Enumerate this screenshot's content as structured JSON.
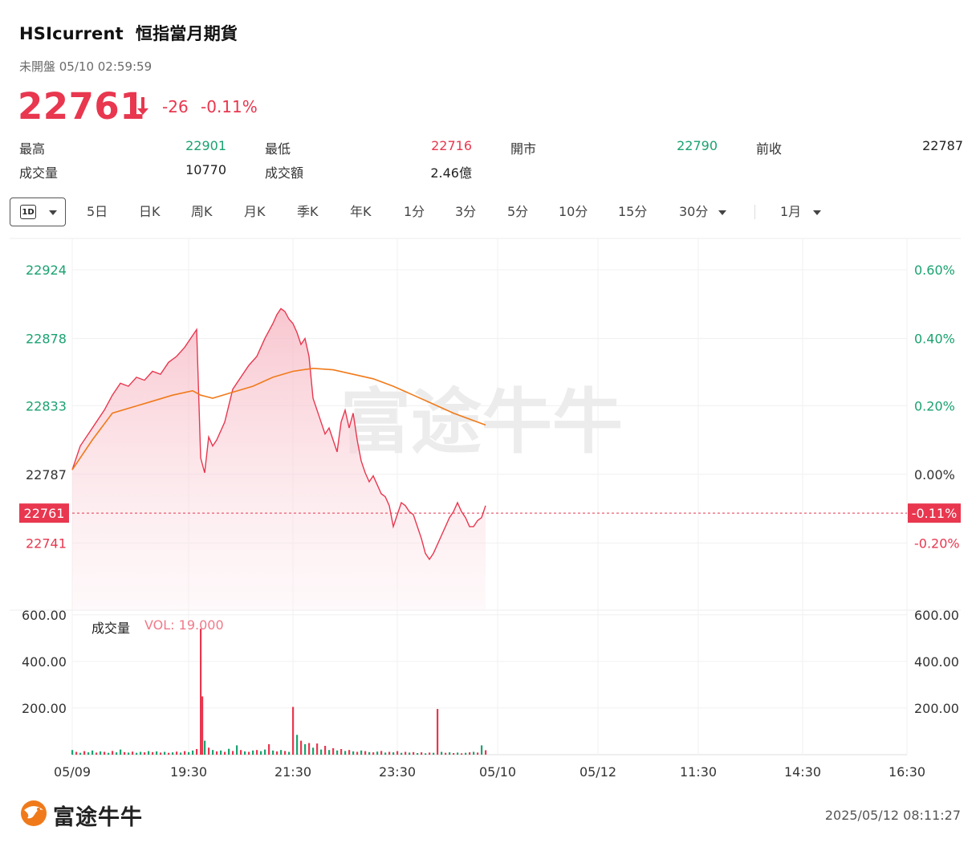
{
  "header": {
    "symbol": "HSIcurrent",
    "name": "恒指當月期貨",
    "status": "未開盤 05/10 02:59:59",
    "price": "22761",
    "change": "-26",
    "change_pct": "-0.11%"
  },
  "stats": [
    {
      "label": "最高",
      "value": "22901",
      "color": "green"
    },
    {
      "label": "最低",
      "value": "22716",
      "color": "red"
    },
    {
      "label": "開市",
      "value": "22790",
      "color": "green"
    },
    {
      "label": "前收",
      "value": "22787",
      "color": "dark"
    },
    {
      "label": "成交量",
      "value": "10770",
      "color": "dark"
    },
    {
      "label": "成交額",
      "value": "2.46億",
      "color": "dark"
    }
  ],
  "tabs": {
    "active": "1D",
    "items": [
      "5日",
      "日K",
      "周K",
      "月K",
      "季K",
      "年K",
      "1分",
      "3分",
      "5分",
      "10分",
      "15分",
      "30分"
    ],
    "range": "1月"
  },
  "colors": {
    "up": "#1aa270",
    "down": "#e8374f",
    "avg_line": "#f07a1a",
    "watermark": "#e9e9e9"
  },
  "chart_data": {
    "type": "line",
    "x_ticks": [
      "05/09",
      "19:30",
      "21:30",
      "23:30",
      "05/10",
      "05/12",
      "11:30",
      "14:30",
      "16:30"
    ],
    "y_ticks": [
      "22924",
      "22878",
      "22833",
      "22787",
      "22741"
    ],
    "y_ticks_pct": [
      "0.60%",
      "0.40%",
      "0.20%",
      "0.00%",
      "-0.20%"
    ],
    "ylim": [
      22696,
      22945
    ],
    "prev_close": 22787,
    "last_price": "22761",
    "last_pct": "-0.11%",
    "price_series": [
      [
        0,
        22790
      ],
      [
        2,
        22806
      ],
      [
        4,
        22814
      ],
      [
        6,
        22822
      ],
      [
        8,
        22830
      ],
      [
        10,
        22840
      ],
      [
        12,
        22848
      ],
      [
        14,
        22846
      ],
      [
        16,
        22852
      ],
      [
        18,
        22850
      ],
      [
        20,
        22856
      ],
      [
        22,
        22854
      ],
      [
        24,
        22862
      ],
      [
        26,
        22866
      ],
      [
        28,
        22872
      ],
      [
        30,
        22880
      ],
      [
        31,
        22884
      ],
      [
        32,
        22798
      ],
      [
        33,
        22788
      ],
      [
        34,
        22812
      ],
      [
        35,
        22806
      ],
      [
        36,
        22810
      ],
      [
        38,
        22822
      ],
      [
        40,
        22844
      ],
      [
        42,
        22852
      ],
      [
        44,
        22860
      ],
      [
        46,
        22866
      ],
      [
        48,
        22878
      ],
      [
        50,
        22888
      ],
      [
        51,
        22894
      ],
      [
        52,
        22898
      ],
      [
        53,
        22896
      ],
      [
        54,
        22891
      ],
      [
        55,
        22888
      ],
      [
        56,
        22882
      ],
      [
        57,
        22874
      ],
      [
        58,
        22878
      ],
      [
        59,
        22866
      ],
      [
        60,
        22838
      ],
      [
        61,
        22830
      ],
      [
        62,
        22822
      ],
      [
        63,
        22814
      ],
      [
        64,
        22818
      ],
      [
        65,
        22810
      ],
      [
        66,
        22802
      ],
      [
        67,
        22822
      ],
      [
        68,
        22830
      ],
      [
        69,
        22818
      ],
      [
        70,
        22828
      ],
      [
        71,
        22810
      ],
      [
        72,
        22796
      ],
      [
        73,
        22788
      ],
      [
        74,
        22782
      ],
      [
        75,
        22786
      ],
      [
        76,
        22780
      ],
      [
        77,
        22774
      ],
      [
        78,
        22772
      ],
      [
        79,
        22766
      ],
      [
        80,
        22752
      ],
      [
        81,
        22760
      ],
      [
        82,
        22768
      ],
      [
        83,
        22766
      ],
      [
        84,
        22762
      ],
      [
        85,
        22760
      ],
      [
        86,
        22752
      ],
      [
        87,
        22744
      ],
      [
        88,
        22734
      ],
      [
        89,
        22730
      ],
      [
        90,
        22734
      ],
      [
        91,
        22740
      ],
      [
        92,
        22746
      ],
      [
        93,
        22752
      ],
      [
        94,
        22758
      ],
      [
        95,
        22762
      ],
      [
        96,
        22768
      ],
      [
        97,
        22762
      ],
      [
        98,
        22758
      ],
      [
        99,
        22752
      ],
      [
        100,
        22752
      ],
      [
        101,
        22756
      ],
      [
        102,
        22758
      ],
      [
        103,
        22766
      ]
    ],
    "avg_series": [
      [
        0,
        22790
      ],
      [
        5,
        22810
      ],
      [
        10,
        22828
      ],
      [
        15,
        22832
      ],
      [
        20,
        22836
      ],
      [
        25,
        22840
      ],
      [
        30,
        22843
      ],
      [
        32,
        22840
      ],
      [
        35,
        22838
      ],
      [
        40,
        22842
      ],
      [
        45,
        22846
      ],
      [
        50,
        22852
      ],
      [
        55,
        22856
      ],
      [
        60,
        22858
      ],
      [
        65,
        22857
      ],
      [
        70,
        22854
      ],
      [
        75,
        22851
      ],
      [
        80,
        22846
      ],
      [
        85,
        22840
      ],
      [
        90,
        22834
      ],
      [
        95,
        22828
      ],
      [
        100,
        22823
      ],
      [
        103,
        22820
      ]
    ],
    "volume": {
      "label": "成交量",
      "value_label": "VOL: 19.000",
      "y_ticks": [
        "600.00",
        "400.00",
        "200.00"
      ],
      "ylim": [
        0,
        620
      ],
      "bars": [
        [
          0,
          20,
          "up"
        ],
        [
          1,
          12,
          "down"
        ],
        [
          2,
          8,
          "up"
        ],
        [
          3,
          15,
          "down"
        ],
        [
          4,
          10,
          "up"
        ],
        [
          5,
          18,
          "up"
        ],
        [
          6,
          9,
          "down"
        ],
        [
          7,
          14,
          "up"
        ],
        [
          8,
          12,
          "down"
        ],
        [
          9,
          8,
          "up"
        ],
        [
          10,
          16,
          "down"
        ],
        [
          11,
          10,
          "up"
        ],
        [
          12,
          22,
          "up"
        ],
        [
          13,
          11,
          "down"
        ],
        [
          14,
          9,
          "up"
        ],
        [
          15,
          13,
          "down"
        ],
        [
          16,
          8,
          "up"
        ],
        [
          17,
          12,
          "up"
        ],
        [
          18,
          10,
          "down"
        ],
        [
          19,
          15,
          "up"
        ],
        [
          20,
          11,
          "down"
        ],
        [
          21,
          14,
          "up"
        ],
        [
          22,
          9,
          "down"
        ],
        [
          23,
          12,
          "up"
        ],
        [
          24,
          8,
          "down"
        ],
        [
          25,
          10,
          "up"
        ],
        [
          26,
          13,
          "down"
        ],
        [
          27,
          9,
          "up"
        ],
        [
          28,
          15,
          "down"
        ],
        [
          29,
          11,
          "up"
        ],
        [
          30,
          18,
          "up"
        ],
        [
          31,
          24,
          "down"
        ],
        [
          32,
          540,
          "down"
        ],
        [
          32.4,
          250,
          "down"
        ],
        [
          33,
          60,
          "up"
        ],
        [
          34,
          30,
          "down"
        ],
        [
          35,
          20,
          "up"
        ],
        [
          36,
          14,
          "down"
        ],
        [
          37,
          18,
          "up"
        ],
        [
          38,
          12,
          "down"
        ],
        [
          39,
          25,
          "up"
        ],
        [
          40,
          16,
          "down"
        ],
        [
          41,
          40,
          "up"
        ],
        [
          42,
          20,
          "down"
        ],
        [
          43,
          14,
          "up"
        ],
        [
          44,
          12,
          "down"
        ],
        [
          45,
          18,
          "up"
        ],
        [
          46,
          20,
          "down"
        ],
        [
          47,
          15,
          "up"
        ],
        [
          48,
          22,
          "up"
        ],
        [
          49,
          45,
          "down"
        ],
        [
          50,
          18,
          "up"
        ],
        [
          51,
          14,
          "down"
        ],
        [
          52,
          20,
          "up"
        ],
        [
          53,
          16,
          "down"
        ],
        [
          54,
          12,
          "up"
        ],
        [
          55,
          205,
          "down"
        ],
        [
          56,
          85,
          "up"
        ],
        [
          57,
          60,
          "down"
        ],
        [
          58,
          45,
          "up"
        ],
        [
          59,
          50,
          "down"
        ],
        [
          60,
          30,
          "up"
        ],
        [
          61,
          48,
          "down"
        ],
        [
          62,
          22,
          "up"
        ],
        [
          63,
          38,
          "down"
        ],
        [
          64,
          20,
          "up"
        ],
        [
          65,
          28,
          "down"
        ],
        [
          66,
          18,
          "up"
        ],
        [
          67,
          24,
          "down"
        ],
        [
          68,
          16,
          "up"
        ],
        [
          69,
          20,
          "down"
        ],
        [
          70,
          14,
          "up"
        ],
        [
          71,
          12,
          "down"
        ],
        [
          72,
          18,
          "up"
        ],
        [
          73,
          15,
          "down"
        ],
        [
          74,
          11,
          "up"
        ],
        [
          75,
          10,
          "down"
        ],
        [
          76,
          13,
          "up"
        ],
        [
          77,
          16,
          "down"
        ],
        [
          78,
          9,
          "up"
        ],
        [
          79,
          12,
          "down"
        ],
        [
          80,
          10,
          "up"
        ],
        [
          81,
          15,
          "down"
        ],
        [
          82,
          8,
          "up"
        ],
        [
          83,
          12,
          "down"
        ],
        [
          84,
          9,
          "up"
        ],
        [
          85,
          11,
          "down"
        ],
        [
          86,
          7,
          "up"
        ],
        [
          87,
          10,
          "down"
        ],
        [
          88,
          6,
          "up"
        ],
        [
          89,
          9,
          "down"
        ],
        [
          90,
          8,
          "up"
        ],
        [
          91,
          196,
          "down"
        ],
        [
          92,
          12,
          "up"
        ],
        [
          93,
          8,
          "down"
        ],
        [
          94,
          10,
          "up"
        ],
        [
          95,
          7,
          "down"
        ],
        [
          96,
          9,
          "up"
        ],
        [
          97,
          6,
          "down"
        ],
        [
          98,
          8,
          "up"
        ],
        [
          99,
          10,
          "down"
        ],
        [
          100,
          12,
          "up"
        ],
        [
          101,
          9,
          "down"
        ],
        [
          102,
          40,
          "up"
        ],
        [
          103,
          19,
          "down"
        ]
      ]
    }
  },
  "watermark_text": "富途牛牛",
  "footer": {
    "brand": "富途牛牛",
    "timestamp": "2025/05/12 08:11:27"
  }
}
